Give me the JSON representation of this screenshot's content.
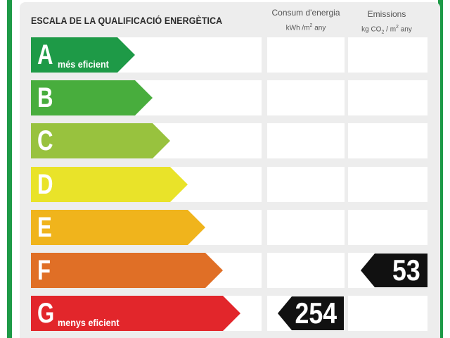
{
  "title": "ESCALA DE LA QUALIFICACIÓ ENERGÈTICA",
  "columns": {
    "consumption": {
      "label": "Consum d'energia",
      "unit_prefix": "kWh /m",
      "unit_power": "2",
      "unit_suffix": " any"
    },
    "emissions": {
      "label": "Emissions",
      "unit_prefix": "kg CO",
      "unit_sub": "2",
      "unit_mid": " / m",
      "unit_power": "2",
      "unit_suffix": " any"
    }
  },
  "ratings": [
    {
      "letter": "A",
      "desc": "més eficient",
      "color": "#1e9a47"
    },
    {
      "letter": "B",
      "desc": "",
      "color": "#48ad3d"
    },
    {
      "letter": "C",
      "desc": "",
      "color": "#98c23e"
    },
    {
      "letter": "D",
      "desc": "",
      "color": "#e9e329"
    },
    {
      "letter": "E",
      "desc": "",
      "color": "#f0b41c"
    },
    {
      "letter": "F",
      "desc": "",
      "color": "#e06f26"
    },
    {
      "letter": "G",
      "desc": "menys eficient",
      "color": "#e2262b"
    }
  ],
  "result": {
    "consumption": {
      "value": "254",
      "rating": "G"
    },
    "emissions": {
      "value": "53",
      "rating": "F"
    }
  }
}
